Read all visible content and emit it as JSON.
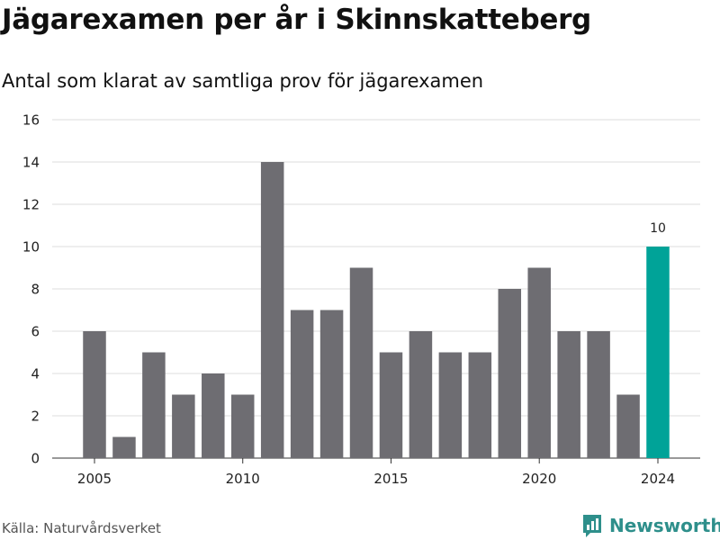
{
  "title": "Jägarexamen per år i Skinnskatteberg",
  "subtitle": "Antal som klarat av samtliga prov för jägarexamen",
  "source": "Källa: Naturvårdsverket",
  "brand": "Newsworthy",
  "colors": {
    "bar": "#6e6d72",
    "highlight": "#00a398",
    "grid": "#dddddd",
    "brand": "#2e8f8b"
  },
  "chart_data": {
    "type": "bar",
    "x": [
      2005,
      2006,
      2007,
      2008,
      2009,
      2010,
      2011,
      2012,
      2013,
      2014,
      2015,
      2016,
      2017,
      2018,
      2019,
      2020,
      2021,
      2022,
      2023,
      2024
    ],
    "values": [
      6,
      1,
      5,
      3,
      4,
      3,
      14,
      7,
      7,
      9,
      5,
      6,
      5,
      5,
      8,
      9,
      6,
      6,
      3,
      10
    ],
    "x_ticks": [
      "2005",
      "2010",
      "2015",
      "2020",
      "2024"
    ],
    "y_ticks": [
      "0",
      "2",
      "4",
      "6",
      "8",
      "10",
      "12",
      "14",
      "16"
    ],
    "ylim": [
      0,
      16
    ],
    "highlight": {
      "x": 2024,
      "label": "10"
    },
    "grid": true
  }
}
